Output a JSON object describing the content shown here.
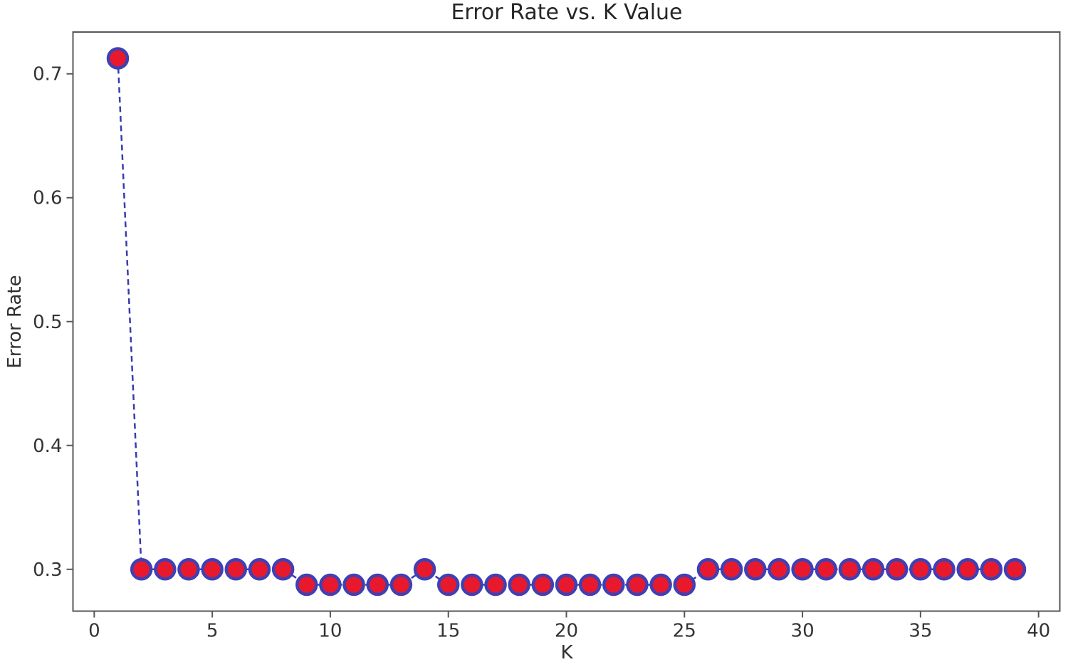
{
  "chart_data": {
    "type": "line",
    "title": "Error Rate vs. K Value",
    "xlabel": "K",
    "ylabel": "Error Rate",
    "x": [
      1,
      2,
      3,
      4,
      5,
      6,
      7,
      8,
      9,
      10,
      11,
      12,
      13,
      14,
      15,
      16,
      17,
      18,
      19,
      20,
      21,
      22,
      23,
      24,
      25,
      26,
      27,
      28,
      29,
      30,
      31,
      32,
      33,
      34,
      35,
      36,
      37,
      38,
      39
    ],
    "y": [
      0.7125,
      0.3,
      0.3,
      0.3,
      0.3,
      0.3,
      0.3,
      0.3,
      0.2875,
      0.2875,
      0.2875,
      0.2875,
      0.2875,
      0.3,
      0.2875,
      0.2875,
      0.2875,
      0.2875,
      0.2875,
      0.2875,
      0.2875,
      0.2875,
      0.2875,
      0.2875,
      0.2875,
      0.3,
      0.3,
      0.3,
      0.3,
      0.3,
      0.3,
      0.3,
      0.3,
      0.3,
      0.3,
      0.3,
      0.3,
      0.3,
      0.3
    ],
    "xlim": [
      -0.9,
      40.9
    ],
    "ylim": [
      0.26625,
      0.73375
    ],
    "x_ticks": [
      0,
      5,
      10,
      15,
      20,
      25,
      30,
      35,
      40
    ],
    "x_tick_labels": [
      "0",
      "5",
      "10",
      "15",
      "20",
      "25",
      "30",
      "35",
      "40"
    ],
    "y_ticks": [
      0.3,
      0.4,
      0.5,
      0.6,
      0.7
    ],
    "y_tick_labels": [
      "0.3",
      "0.4",
      "0.5",
      "0.6",
      "0.7"
    ],
    "grid": false,
    "legend_position": "none",
    "line_style": "dashed",
    "marker": "circle",
    "colors": {
      "line": "#3a3ab0",
      "marker_face": "#e8192c",
      "marker_edge": "#4040b4",
      "spine": "#55585c",
      "tick_text": "#333333",
      "background": "#ffffff"
    }
  }
}
